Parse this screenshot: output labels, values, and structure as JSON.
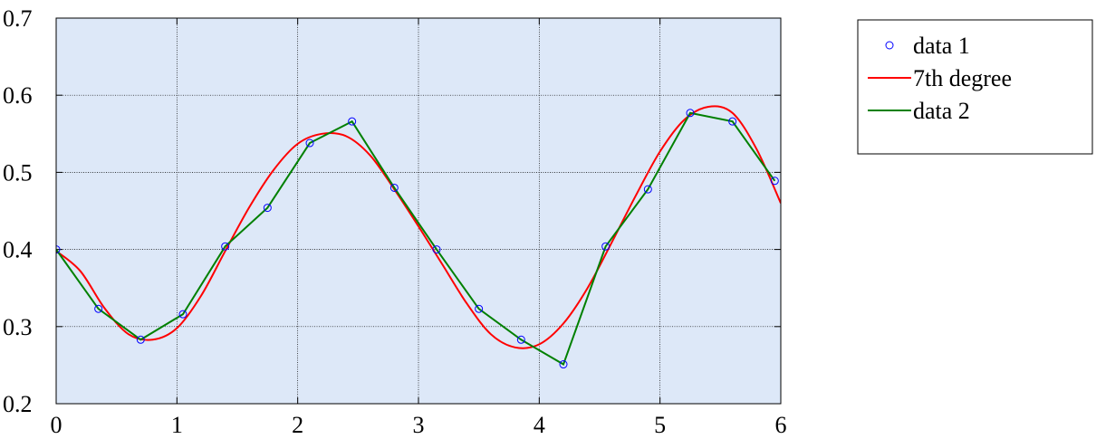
{
  "chart_data": {
    "type": "line",
    "xlim": [
      0,
      6
    ],
    "ylim": [
      0.2,
      0.7
    ],
    "grid": true,
    "legend_position": "outside-right-top",
    "x_ticks": [
      "0",
      "1",
      "2",
      "3",
      "4",
      "5",
      "6"
    ],
    "y_ticks": [
      "0.2",
      "0.3",
      "0.4",
      "0.5",
      "0.6",
      "0.7"
    ],
    "colors": {
      "plot_background": "#dde8f8",
      "grid": "#000000",
      "markers": "#0000ff",
      "fit_line": "#ff0000",
      "data_line": "#008000"
    },
    "series": [
      {
        "name": "data 1",
        "kind": "markers",
        "x": [
          0,
          0.35,
          0.7,
          1.05,
          1.4,
          1.75,
          2.1,
          2.45,
          2.8,
          3.15,
          3.5,
          3.85,
          4.2,
          4.55,
          4.9,
          5.25,
          5.6,
          5.95
        ],
        "y": [
          0.4,
          0.323,
          0.283,
          0.316,
          0.404,
          0.454,
          0.538,
          0.566,
          0.48,
          0.4,
          0.323,
          0.283,
          0.251,
          0.404,
          0.478,
          0.577,
          0.566,
          0.489
        ]
      },
      {
        "name": "7th degree",
        "kind": "line",
        "x": [
          0,
          0.2,
          0.4,
          0.6,
          0.8,
          1.0,
          1.2,
          1.4,
          1.6,
          1.8,
          2.0,
          2.2,
          2.4,
          2.6,
          2.8,
          3.0,
          3.2,
          3.4,
          3.6,
          3.8,
          4.0,
          4.2,
          4.4,
          4.6,
          4.8,
          5.0,
          5.2,
          5.4,
          5.6,
          5.8,
          6.0
        ],
        "y": [
          0.398,
          0.372,
          0.324,
          0.29,
          0.283,
          0.298,
          0.34,
          0.398,
          0.455,
          0.503,
          0.537,
          0.55,
          0.547,
          0.522,
          0.478,
          0.43,
          0.38,
          0.33,
          0.29,
          0.273,
          0.277,
          0.304,
          0.35,
          0.409,
          0.47,
          0.527,
          0.568,
          0.585,
          0.577,
          0.53,
          0.46
        ]
      },
      {
        "name": "data 2",
        "kind": "line",
        "x": [
          0,
          0.35,
          0.7,
          1.05,
          1.4,
          1.75,
          2.1,
          2.45,
          2.8,
          3.15,
          3.5,
          3.85,
          4.2,
          4.55,
          4.9,
          5.25,
          5.6,
          5.95
        ],
        "y": [
          0.4,
          0.323,
          0.283,
          0.316,
          0.404,
          0.454,
          0.538,
          0.566,
          0.48,
          0.4,
          0.323,
          0.283,
          0.251,
          0.404,
          0.478,
          0.577,
          0.566,
          0.489
        ]
      }
    ]
  }
}
